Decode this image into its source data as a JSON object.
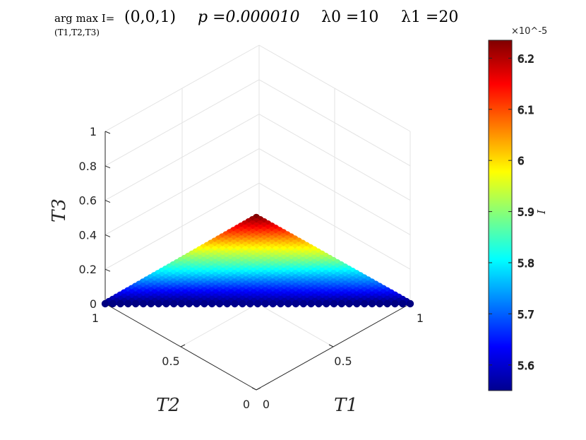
{
  "title": {
    "argmax_prefix": "arg max I=",
    "argmax_sub": "(T1,T2,T3)",
    "argmax_value": "(0,0,1)",
    "p": "p =0.000010",
    "lambda0": "λ0 =10",
    "lambda1": "λ1 =20"
  },
  "chart_data": {
    "type": "scatter",
    "projection": "ternary-3d",
    "xlabel": "T1",
    "ylabel": "T2",
    "zlabel": "T3",
    "t1_ticks": [
      "0",
      "0.5",
      "1"
    ],
    "t2_ticks": [
      "0",
      "0.5",
      "1"
    ],
    "t3_ticks": [
      "0",
      "0.2",
      "0.4",
      "0.6",
      "0.8",
      "1"
    ],
    "grid": true,
    "constraint": "T1 + T2 + T3 = 1",
    "colormap": "jet",
    "colorbar": {
      "label": "I",
      "exponent_label": "×10^-5",
      "min": 5.55,
      "max": 6.235,
      "ticks": [
        "5.6",
        "5.7",
        "5.8",
        "5.9",
        "6",
        "6.1",
        "6.2"
      ],
      "tick_values": [
        5.6,
        5.7,
        5.8,
        5.9,
        6.0,
        6.1,
        6.2
      ]
    },
    "value_model": "I(T3) ≈ 5.555 + 0.68·T3 (×1e-5), approximately independent of T1, T2",
    "grid_steps": 40
  }
}
